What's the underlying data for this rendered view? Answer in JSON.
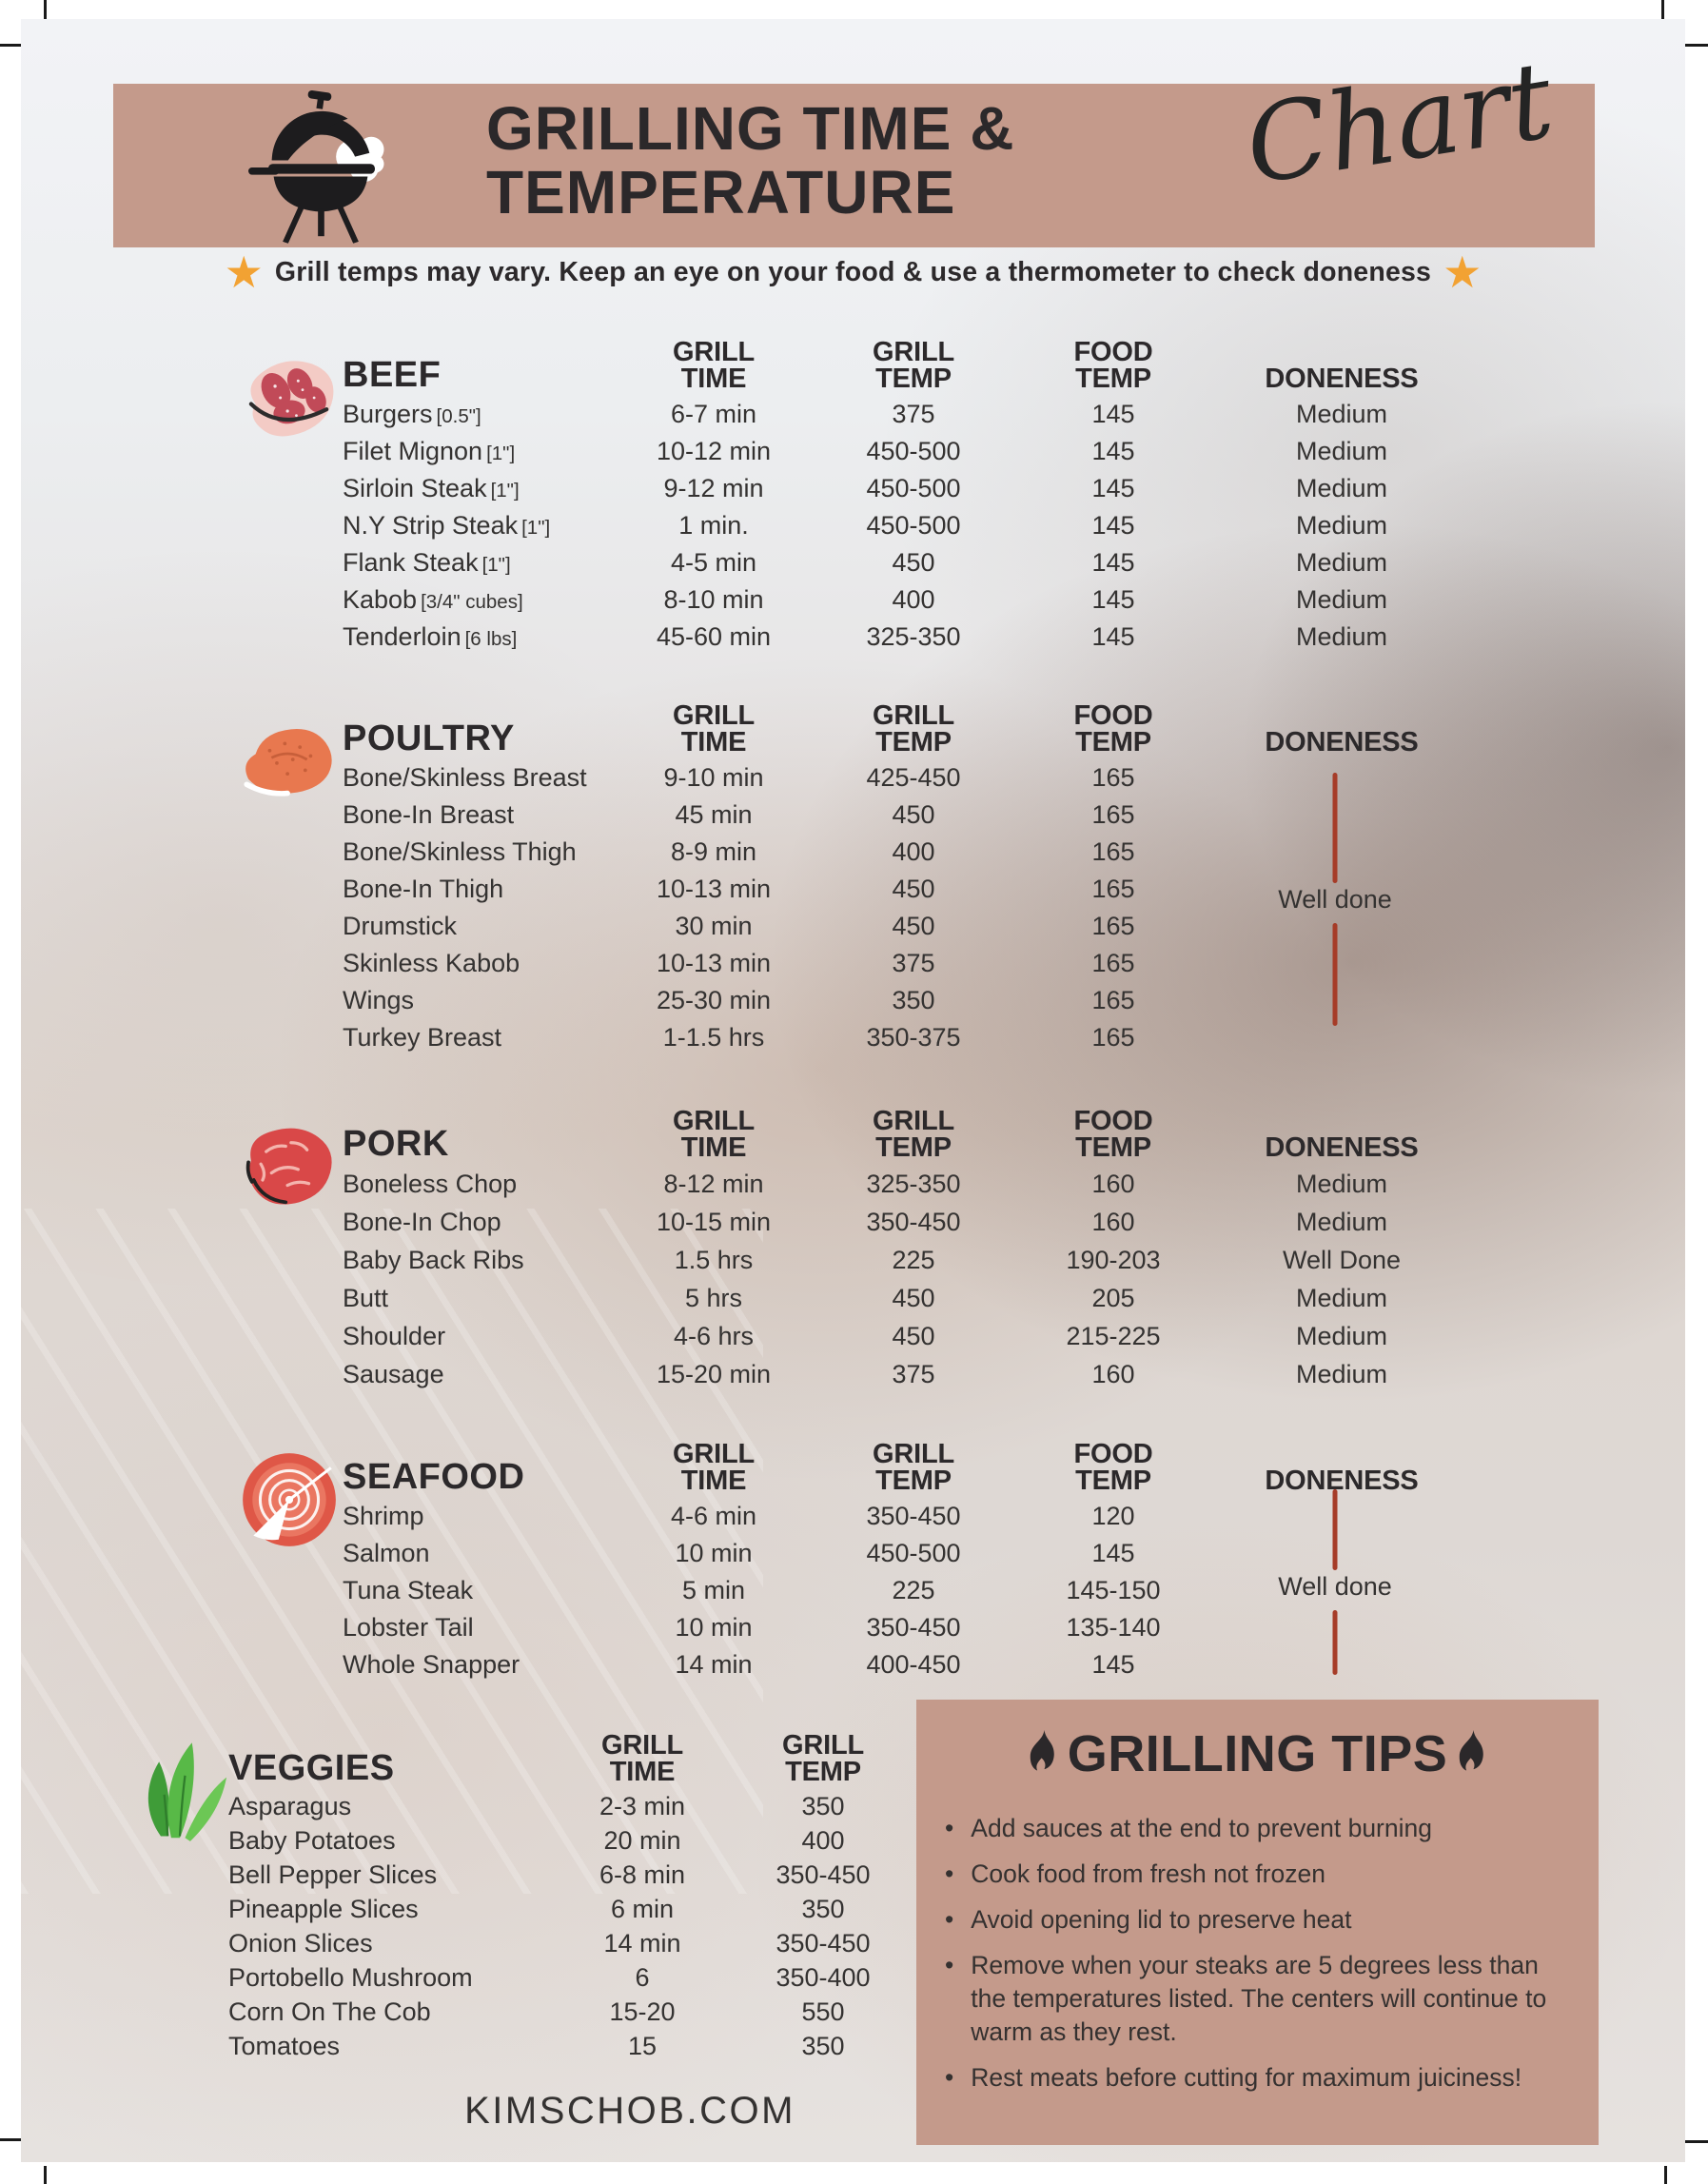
{
  "page": {
    "header": {
      "title_line1": "GRILLING TIME &",
      "title_line2": "TEMPERATURE",
      "script_word": "Chart"
    },
    "notice": {
      "text": "Grill temps may vary. Keep an eye on your food & use a thermometer to check doneness",
      "star_icon": "star"
    },
    "column_headers": {
      "grill_time": [
        "GRILL",
        "TIME"
      ],
      "grill_temp": [
        "GRILL",
        "TEMP"
      ],
      "food_temp": [
        "FOOD",
        "TEMP"
      ],
      "doneness": "DONENESS"
    },
    "sections": [
      {
        "id": "beef",
        "title": "BEEF",
        "icon": "beef-steak-icon",
        "rows": [
          {
            "item": "Burgers",
            "size": "[0.5\"]",
            "grill_time": "6-7 min",
            "grill_temp": "375",
            "food_temp": "145",
            "doneness": "Medium"
          },
          {
            "item": "Filet Mignon",
            "size": "[1\"]",
            "grill_time": "10-12 min",
            "grill_temp": "450-500",
            "food_temp": "145",
            "doneness": "Medium"
          },
          {
            "item": "Sirloin Steak",
            "size": "[1\"]",
            "grill_time": "9-12 min",
            "grill_temp": "450-500",
            "food_temp": "145",
            "doneness": "Medium"
          },
          {
            "item": "N.Y Strip Steak",
            "size": "[1\"]",
            "grill_time": "1 min.",
            "grill_temp": "450-500",
            "food_temp": "145",
            "doneness": "Medium"
          },
          {
            "item": "Flank Steak",
            "size": "[1\"]",
            "grill_time": "4-5 min",
            "grill_temp": "450",
            "food_temp": "145",
            "doneness": "Medium"
          },
          {
            "item": "Kabob",
            "size": "[3/4\" cubes]",
            "grill_time": "8-10 min",
            "grill_temp": "400",
            "food_temp": "145",
            "doneness": "Medium"
          },
          {
            "item": "Tenderloin",
            "size": "[6 lbs]",
            "grill_time": "45-60 min",
            "grill_temp": "325-350",
            "food_temp": "145",
            "doneness": "Medium"
          }
        ]
      },
      {
        "id": "poultry",
        "title": "POULTRY",
        "icon": "poultry-icon",
        "doneness_note": "Well done",
        "rows": [
          {
            "item": "Bone/Skinless Breast",
            "grill_time": "9-10 min",
            "grill_temp": "425-450",
            "food_temp": "165"
          },
          {
            "item": "Bone-In Breast",
            "grill_time": "45 min",
            "grill_temp": "450",
            "food_temp": "165"
          },
          {
            "item": "Bone/Skinless Thigh",
            "grill_time": "8-9 min",
            "grill_temp": "400",
            "food_temp": "165"
          },
          {
            "item": "Bone-In Thigh",
            "grill_time": "10-13 min",
            "grill_temp": "450",
            "food_temp": "165"
          },
          {
            "item": "Drumstick",
            "grill_time": "30 min",
            "grill_temp": "450",
            "food_temp": "165"
          },
          {
            "item": "Skinless Kabob",
            "grill_time": "10-13 min",
            "grill_temp": "375",
            "food_temp": "165"
          },
          {
            "item": "Wings",
            "grill_time": "25-30 min",
            "grill_temp": "350",
            "food_temp": "165"
          },
          {
            "item": "Turkey Breast",
            "grill_time": "1-1.5 hrs",
            "grill_temp": "350-375",
            "food_temp": "165"
          }
        ]
      },
      {
        "id": "pork",
        "title": "PORK",
        "icon": "pork-ham-icon",
        "rows": [
          {
            "item": "Boneless Chop",
            "grill_time": "8-12 min",
            "grill_temp": "325-350",
            "food_temp": "160",
            "doneness": "Medium"
          },
          {
            "item": "Bone-In Chop",
            "grill_time": "10-15 min",
            "grill_temp": "350-450",
            "food_temp": "160",
            "doneness": "Medium"
          },
          {
            "item": "Baby Back Ribs",
            "grill_time": "1.5 hrs",
            "grill_temp": "225",
            "food_temp": "190-203",
            "doneness": "Well Done"
          },
          {
            "item": "Butt",
            "grill_time": "5 hrs",
            "grill_temp": "450",
            "food_temp": "205",
            "doneness": "Medium"
          },
          {
            "item": "Shoulder",
            "grill_time": "4-6 hrs",
            "grill_temp": "450",
            "food_temp": "215-225",
            "doneness": "Medium"
          },
          {
            "item": "Sausage",
            "grill_time": "15-20 min",
            "grill_temp": "375",
            "food_temp": "160",
            "doneness": "Medium"
          }
        ]
      },
      {
        "id": "seafood",
        "title": "SEAFOOD",
        "icon": "seafood-salmon-icon",
        "doneness_note": "Well done",
        "rows": [
          {
            "item": "Shrimp",
            "grill_time": "4-6 min",
            "grill_temp": "350-450",
            "food_temp": "120"
          },
          {
            "item": "Salmon",
            "grill_time": "10 min",
            "grill_temp": "450-500",
            "food_temp": "145"
          },
          {
            "item": "Tuna Steak",
            "grill_time": "5 min",
            "grill_temp": "225",
            "food_temp": "145-150"
          },
          {
            "item": "Lobster Tail",
            "grill_time": "10 min",
            "grill_temp": "350-450",
            "food_temp": "135-140"
          },
          {
            "item": "Whole Snapper",
            "grill_time": "14 min",
            "grill_temp": "400-450",
            "food_temp": "145"
          }
        ]
      },
      {
        "id": "veggies",
        "title": "VEGGIES",
        "icon": "veggies-icon",
        "rows": [
          {
            "item": "Asparagus",
            "grill_time": "2-3 min",
            "grill_temp": "350"
          },
          {
            "item": "Baby Potatoes",
            "grill_time": "20 min",
            "grill_temp": "400"
          },
          {
            "item": "Bell Pepper Slices",
            "grill_time": "6-8 min",
            "grill_temp": "350-450"
          },
          {
            "item": "Pineapple Slices",
            "grill_time": "6 min",
            "grill_temp": "350"
          },
          {
            "item": "Onion Slices",
            "grill_time": "14 min",
            "grill_temp": "350-450"
          },
          {
            "item": "Portobello Mushroom",
            "grill_time": "6",
            "grill_temp": "350-400"
          },
          {
            "item": "Corn On The Cob",
            "grill_time": "15-20",
            "grill_temp": "550"
          },
          {
            "item": "Tomatoes",
            "grill_time": "15",
            "grill_temp": "350"
          }
        ]
      }
    ],
    "tips": {
      "title": "GRILLING TIPS",
      "flame_icon": "flame",
      "items": [
        "Add sauces at the end to prevent burning",
        "Cook food from fresh not frozen",
        "Avoid opening lid  to preserve heat",
        "Remove when your steaks are 5 degrees less than the temperatures listed. The centers will continue to warm as they rest.",
        "Rest meats before cutting for maximum juiciness!"
      ]
    },
    "footer": {
      "website": "KIMSCHOB.COM"
    },
    "colors": {
      "banner": "#c49a8b",
      "doneness_line": "#a63c28",
      "star": "#f2a233",
      "title_text": "#2b282a"
    }
  }
}
